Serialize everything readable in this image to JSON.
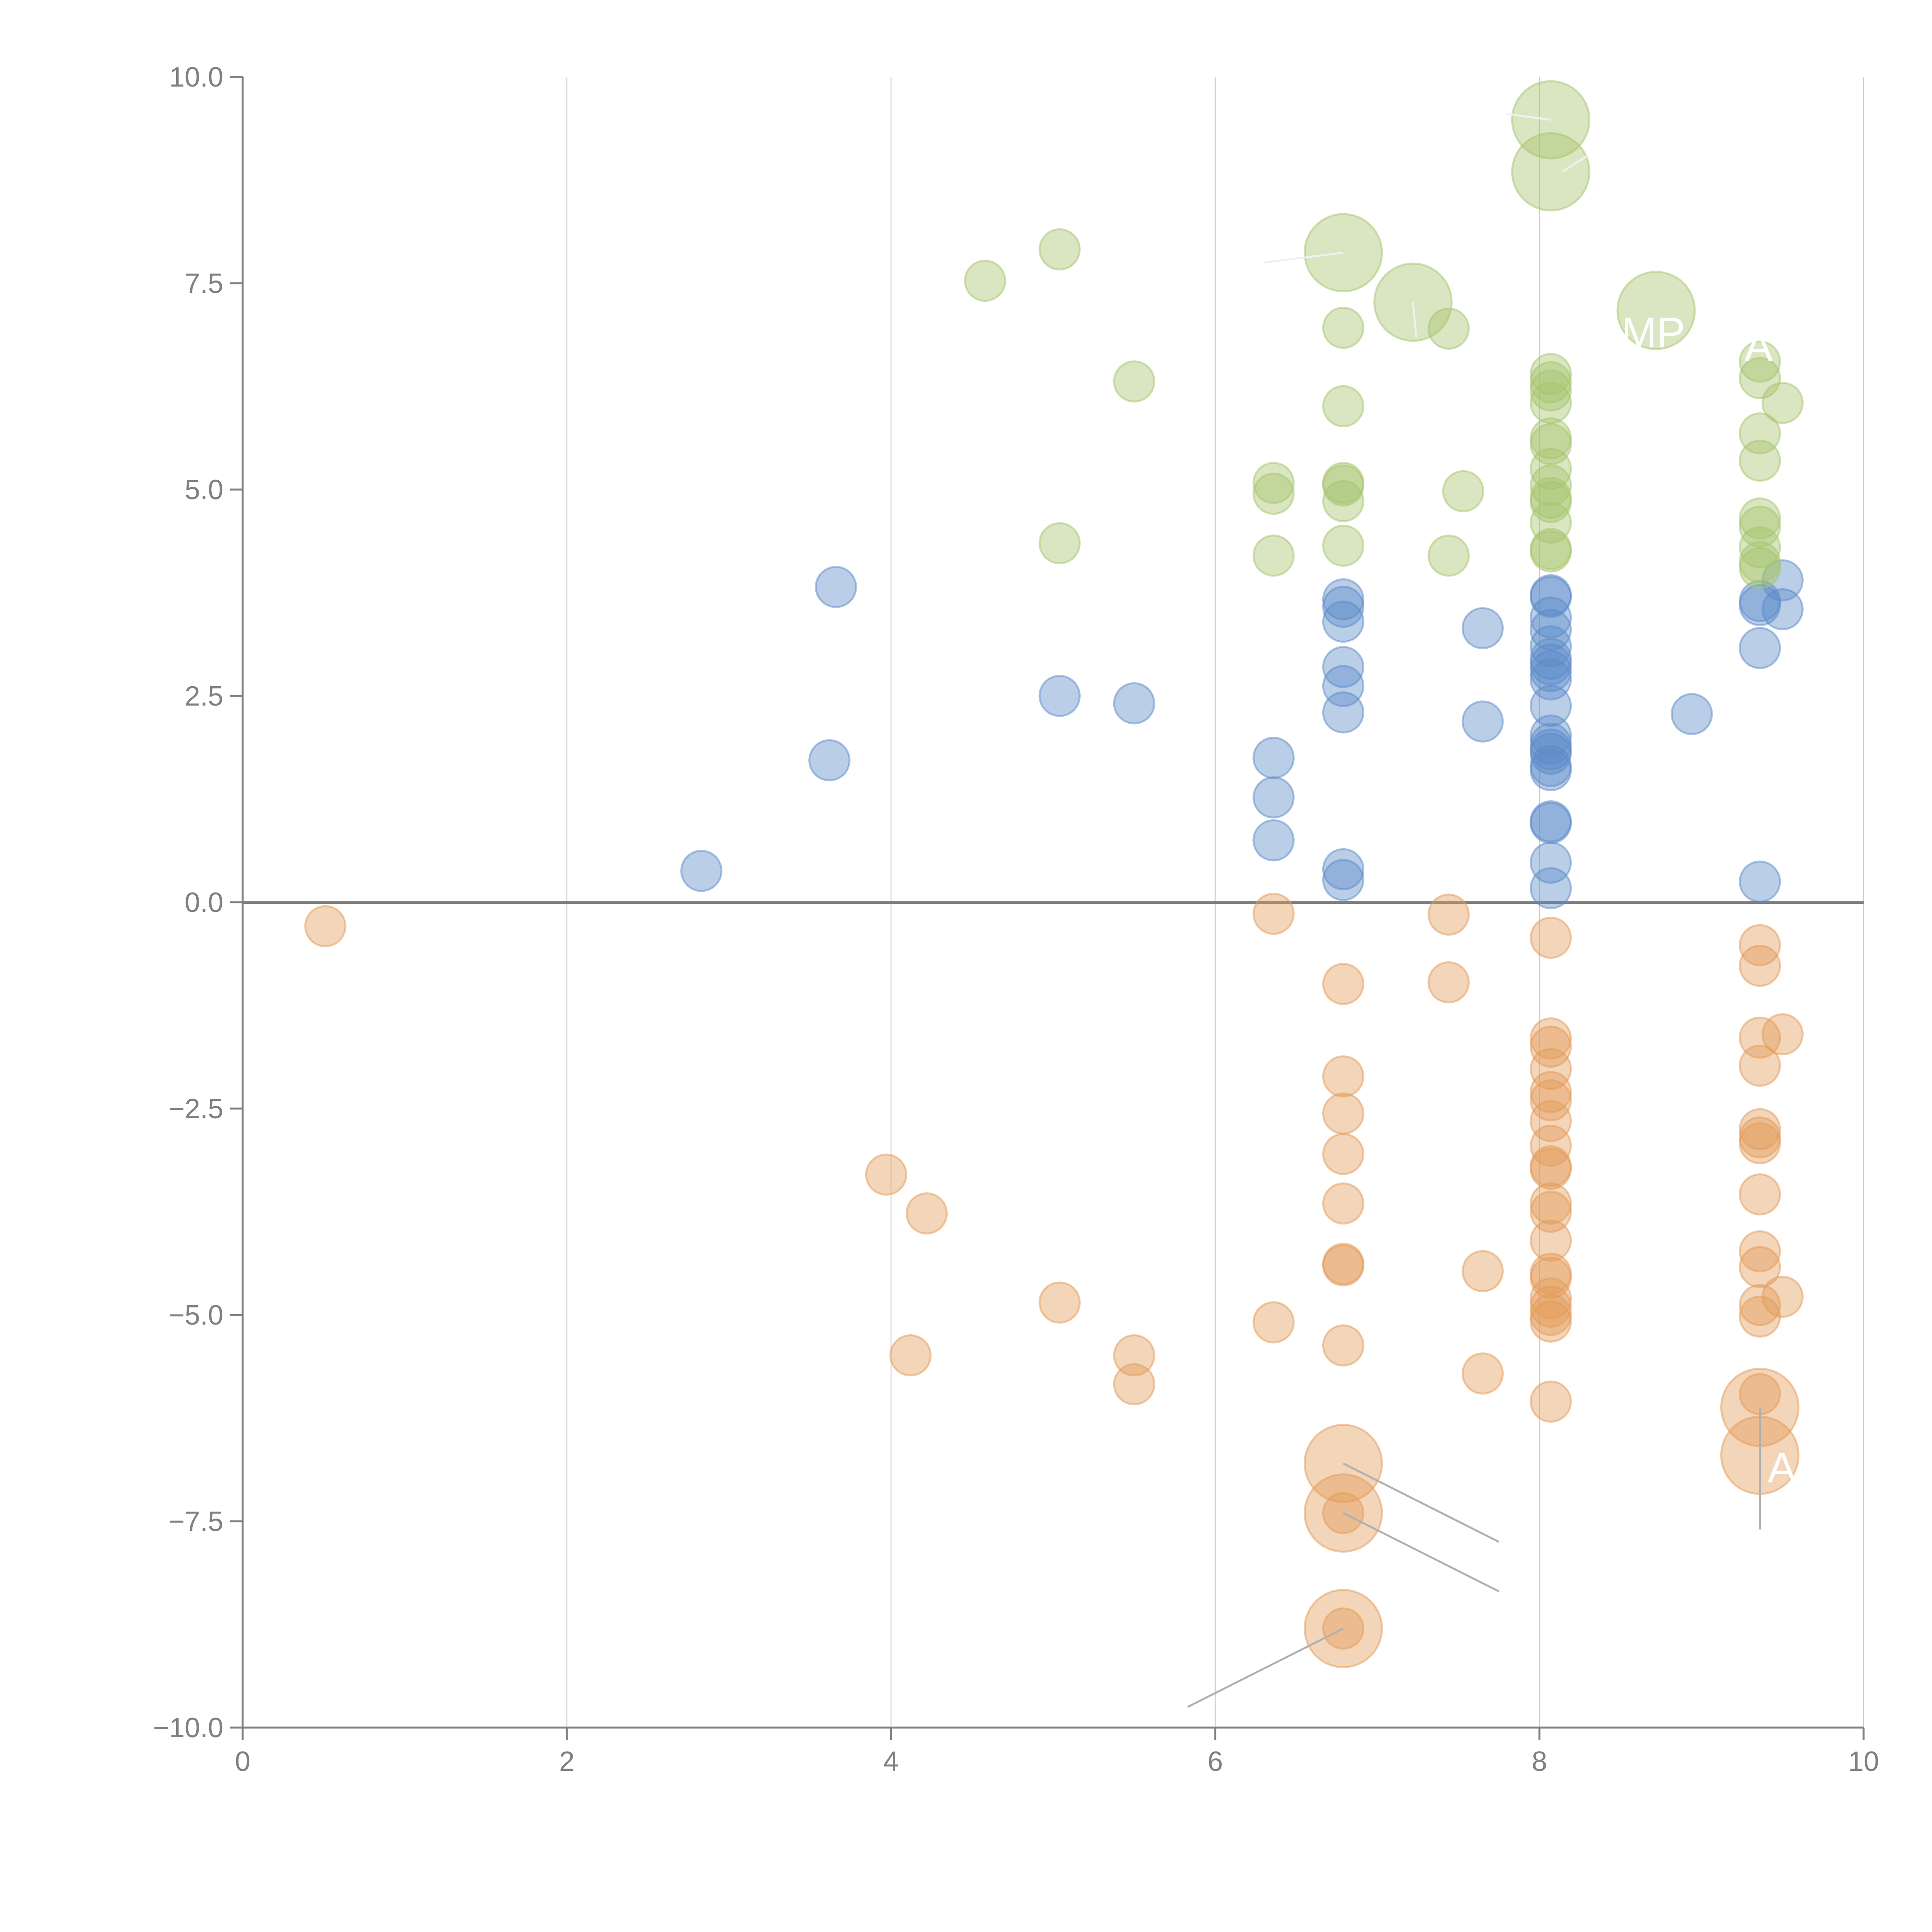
{
  "chart_data": {
    "type": "scatter",
    "title": "",
    "xlabel": "",
    "ylabel": "",
    "xlim": [
      0,
      10
    ],
    "ylim": [
      -10,
      10
    ],
    "x_ticks": [
      "0",
      "2",
      "4",
      "6",
      "8",
      "10"
    ],
    "x_tick_values": [
      0,
      2,
      4,
      6,
      8,
      10
    ],
    "y_ticks": [
      "10.0",
      "7.5",
      "5.0",
      "2.5",
      "0.0",
      "−2.5",
      "−5.0",
      "−7.5",
      "−10.0"
    ],
    "y_tick_values": [
      10,
      7.5,
      5,
      2.5,
      0,
      -2.5,
      -5,
      -7.5,
      -10
    ],
    "grid": "vertical",
    "zero_line": true,
    "colors": {
      "blue": "#5b8ac8",
      "orange": "#e39a58",
      "green": "#a5c46c"
    },
    "series": [
      {
        "name": "blue",
        "color": "#5b8ac8",
        "points": [
          [
            2.83,
            0.38
          ],
          [
            3.62,
            1.72
          ],
          [
            3.66,
            3.82
          ],
          [
            5.04,
            2.5
          ],
          [
            5.5,
            2.41
          ],
          [
            6.36,
            1.75
          ],
          [
            6.36,
            1.27
          ],
          [
            6.36,
            0.75
          ],
          [
            6.79,
            3.67
          ],
          [
            6.79,
            3.58
          ],
          [
            6.79,
            3.4
          ],
          [
            6.79,
            2.85
          ],
          [
            6.79,
            2.62
          ],
          [
            6.79,
            2.3
          ],
          [
            6.79,
            0.4
          ],
          [
            6.79,
            0.27
          ],
          [
            7.65,
            3.32
          ],
          [
            7.65,
            2.19
          ],
          [
            8.07,
            3.72
          ],
          [
            8.07,
            3.7
          ],
          [
            8.07,
            3.45
          ],
          [
            8.07,
            3.3
          ],
          [
            8.07,
            3.1
          ],
          [
            8.07,
            2.95
          ],
          [
            8.07,
            2.88
          ],
          [
            8.07,
            2.8
          ],
          [
            8.07,
            2.7
          ],
          [
            8.07,
            2.38
          ],
          [
            8.07,
            2.02
          ],
          [
            8.07,
            1.92
          ],
          [
            8.07,
            1.85
          ],
          [
            8.07,
            1.8
          ],
          [
            8.07,
            1.65
          ],
          [
            8.07,
            1.6
          ],
          [
            8.07,
            0.98
          ],
          [
            8.07,
            0.96
          ],
          [
            8.07,
            0.48
          ],
          [
            8.07,
            0.17
          ],
          [
            8.94,
            2.28
          ],
          [
            9.36,
            3.65
          ],
          [
            9.36,
            3.6
          ],
          [
            9.36,
            3.08
          ],
          [
            9.36,
            0.25
          ],
          [
            9.5,
            3.9
          ],
          [
            9.5,
            3.55
          ]
        ]
      },
      {
        "name": "orange",
        "color": "#e39a58",
        "points": [
          [
            0.51,
            -0.29
          ],
          [
            3.97,
            -3.3
          ],
          [
            4.22,
            -3.77
          ],
          [
            4.12,
            -5.49
          ],
          [
            5.04,
            -4.85
          ],
          [
            5.5,
            -5.49
          ],
          [
            5.5,
            -5.84
          ],
          [
            6.36,
            -0.14
          ],
          [
            6.36,
            -5.09
          ],
          [
            6.79,
            -0.99
          ],
          [
            6.79,
            -2.11
          ],
          [
            6.79,
            -2.56
          ],
          [
            6.79,
            -3.05
          ],
          [
            6.79,
            -3.65
          ],
          [
            6.79,
            -4.38
          ],
          [
            6.79,
            -4.4
          ],
          [
            6.79,
            -5.37
          ],
          [
            6.79,
            -7.4
          ],
          [
            6.79,
            -8.8
          ],
          [
            7.44,
            -0.15
          ],
          [
            7.44,
            -0.97
          ],
          [
            7.65,
            -4.47
          ],
          [
            7.65,
            -5.71
          ],
          [
            8.07,
            -0.43
          ],
          [
            8.07,
            -1.65
          ],
          [
            8.07,
            -1.75
          ],
          [
            8.07,
            -2.02
          ],
          [
            8.07,
            -2.3
          ],
          [
            8.07,
            -2.4
          ],
          [
            8.07,
            -2.65
          ],
          [
            8.07,
            -2.95
          ],
          [
            8.07,
            -3.2
          ],
          [
            8.07,
            -3.23
          ],
          [
            8.07,
            -3.65
          ],
          [
            8.07,
            -3.75
          ],
          [
            8.07,
            -4.1
          ],
          [
            8.07,
            -4.5
          ],
          [
            8.07,
            -4.55
          ],
          [
            8.07,
            -4.8
          ],
          [
            8.07,
            -4.9
          ],
          [
            8.07,
            -5.0
          ],
          [
            8.07,
            -5.08
          ],
          [
            8.07,
            -6.05
          ],
          [
            9.36,
            -0.52
          ],
          [
            9.36,
            -0.77
          ],
          [
            9.36,
            -1.64
          ],
          [
            9.36,
            -1.98
          ],
          [
            9.36,
            -2.75
          ],
          [
            9.36,
            -2.85
          ],
          [
            9.36,
            -2.92
          ],
          [
            9.36,
            -3.54
          ],
          [
            9.36,
            -4.23
          ],
          [
            9.36,
            -4.42
          ],
          [
            9.36,
            -4.88
          ],
          [
            9.36,
            -5.02
          ],
          [
            9.36,
            -5.96
          ],
          [
            9.5,
            -1.6
          ],
          [
            9.5,
            -4.78
          ]
        ]
      },
      {
        "name": "green",
        "color": "#a5c46c",
        "points": [
          [
            4.58,
            7.53
          ],
          [
            5.04,
            7.91
          ],
          [
            5.04,
            4.35
          ],
          [
            5.5,
            6.31
          ],
          [
            6.36,
            5.08
          ],
          [
            6.36,
            4.95
          ],
          [
            6.36,
            4.2
          ],
          [
            6.79,
            6.96
          ],
          [
            6.79,
            6.01
          ],
          [
            6.79,
            5.08
          ],
          [
            6.79,
            5.05
          ],
          [
            6.79,
            4.86
          ],
          [
            6.79,
            4.32
          ],
          [
            7.44,
            6.95
          ],
          [
            7.44,
            4.2
          ],
          [
            7.53,
            4.98
          ],
          [
            8.07,
            6.4
          ],
          [
            8.07,
            6.3
          ],
          [
            8.07,
            6.2
          ],
          [
            8.07,
            6.05
          ],
          [
            8.07,
            5.62
          ],
          [
            8.07,
            5.55
          ],
          [
            8.07,
            5.25
          ],
          [
            8.07,
            5.05
          ],
          [
            8.07,
            4.9
          ],
          [
            8.07,
            4.85
          ],
          [
            8.07,
            4.6
          ],
          [
            8.07,
            4.28
          ],
          [
            8.07,
            4.25
          ],
          [
            9.36,
            6.55
          ],
          [
            9.36,
            6.35
          ],
          [
            9.36,
            5.68
          ],
          [
            9.36,
            5.35
          ],
          [
            9.36,
            4.65
          ],
          [
            9.36,
            4.55
          ],
          [
            9.36,
            4.3
          ],
          [
            9.36,
            4.12
          ],
          [
            9.36,
            4.05
          ],
          [
            9.5,
            6.05
          ]
        ]
      }
    ],
    "highlighted": [
      {
        "series": "green",
        "x": 8.07,
        "y": 9.48,
        "label": ""
      },
      {
        "series": "green",
        "x": 8.07,
        "y": 8.85,
        "label": ""
      },
      {
        "series": "green",
        "x": 6.79,
        "y": 7.87,
        "label": ""
      },
      {
        "series": "green",
        "x": 7.22,
        "y": 7.27,
        "label": ""
      },
      {
        "series": "green",
        "x": 8.72,
        "y": 7.17,
        "label": "MP"
      },
      {
        "series": "orange",
        "x": 6.79,
        "y": -6.8,
        "label": ""
      },
      {
        "series": "orange",
        "x": 6.79,
        "y": -7.4,
        "label": ""
      },
      {
        "series": "orange",
        "x": 6.79,
        "y": -8.8,
        "label": ""
      },
      {
        "series": "orange",
        "x": 9.36,
        "y": -6.12,
        "label": ""
      },
      {
        "series": "orange",
        "x": 9.36,
        "y": -6.7,
        "label": "A"
      }
    ],
    "extra_labels": [
      {
        "x": 9.36,
        "y": 6.7,
        "text": "A"
      }
    ]
  }
}
